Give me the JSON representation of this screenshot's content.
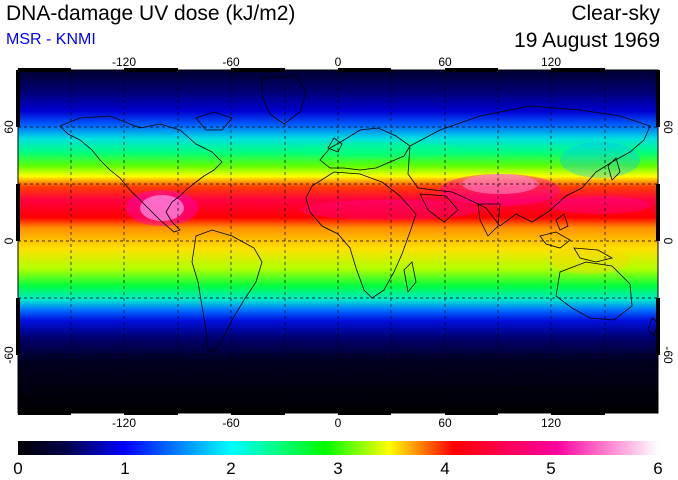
{
  "title": "DNA-damage UV dose (kJ/m2)",
  "subtitle": "MSR - KNMI",
  "sky_condition": "Clear-sky",
  "date": "19 August 1969",
  "subtitle_color": "#0000ff",
  "map": {
    "projection": "equirectangular",
    "lon_range": [
      -180,
      180
    ],
    "lat_range": [
      -90,
      90
    ],
    "gridlines": "dashed every 30 degrees",
    "lon_tick_labels": [
      "-120",
      "-60",
      "0",
      "60",
      "120"
    ],
    "lat_tick_labels": [
      "60",
      "0",
      "-60"
    ],
    "colorscale_stops": [
      "#000000",
      "#000050",
      "#0000ff",
      "#00ffff",
      "#00ff00",
      "#ffff00",
      "#ff0000",
      "#ff00a0",
      "#ffffff"
    ]
  },
  "colorbar": {
    "min": 0,
    "max": 6,
    "labels": [
      "0",
      "1",
      "2",
      "3",
      "4",
      "5",
      "6"
    ]
  }
}
